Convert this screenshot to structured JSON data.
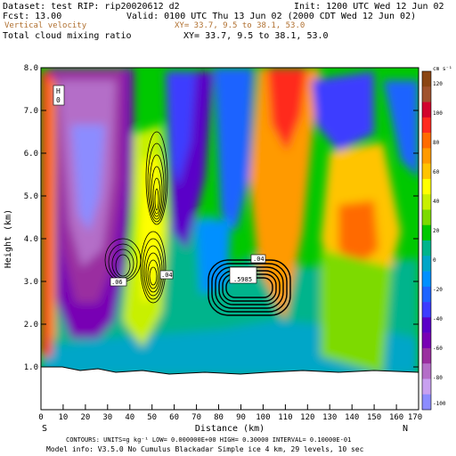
{
  "header": {
    "dataset": "Dataset: test  RIP: rip20020612 d2",
    "init": "Init: 1200 UTC Wed 12 Jun 02",
    "fcst": "Fcst:   13.00",
    "valid": "Valid: 0100 UTC Thu 13 Jun 02 (2000 CDT Wed 12 Jun 02)",
    "field1": "Vertical velocity",
    "field1_xy": "XY=  33.7,  9.5 to  38.1, 53.0",
    "field2": "Total cloud mixing ratio",
    "field2_xy": "XY=  33.7,  9.5 to  38.1, 53.0"
  },
  "plot": {
    "ylabel": "Height (km)",
    "xlabel": "Distance (km)",
    "ytick_labels": [
      "1.0",
      "2.0",
      "3.0",
      "4.0",
      "5.0",
      "6.0",
      "7.0",
      "8.0"
    ],
    "xtick_labels": [
      "0",
      "10",
      "20",
      "30",
      "40",
      "50",
      "60",
      "70",
      "80",
      "90",
      "100",
      "110",
      "120",
      "130",
      "140",
      "150",
      "160",
      "170"
    ],
    "left_end": "S",
    "right_end": "N",
    "contour_labels": {
      "h_marker": "H",
      "h_value": "0",
      "l_box_value": ".04",
      "l_box2_value": ".5985",
      "l_small_value": ".04",
      "l_left_value": ".06"
    }
  },
  "colorbar": {
    "unit": "cm s⁻¹",
    "labels": [
      "120",
      "100",
      "80",
      "60",
      "40",
      "20",
      "0",
      "-20",
      "-40",
      "-60",
      "-80",
      "-100"
    ],
    "colors": [
      "#8b4513",
      "#a0522d",
      "#d2042d",
      "#ff2a1f",
      "#ff6b00",
      "#ff9a00",
      "#ffc400",
      "#ffff00",
      "#c8f000",
      "#7dda00",
      "#00c800",
      "#00b48c",
      "#00a6c8",
      "#0090ff",
      "#1e64ff",
      "#3c3cff",
      "#5a00c8",
      "#7800b4",
      "#9a2fa0",
      "#b46ec8",
      "#c8a0f0",
      "#8c8cff"
    ]
  },
  "footer": {
    "contours": "CONTOURS:  UNITS=g kg⁻¹   LOW= 0.000000E+00  HIGH= 0.30000       INTERVAL=  0.10000E-01",
    "model": "Model info: V3.5.0 No Cumulus Blackadar  Simple ice     4 km,  29 levels,  10 sec"
  }
}
